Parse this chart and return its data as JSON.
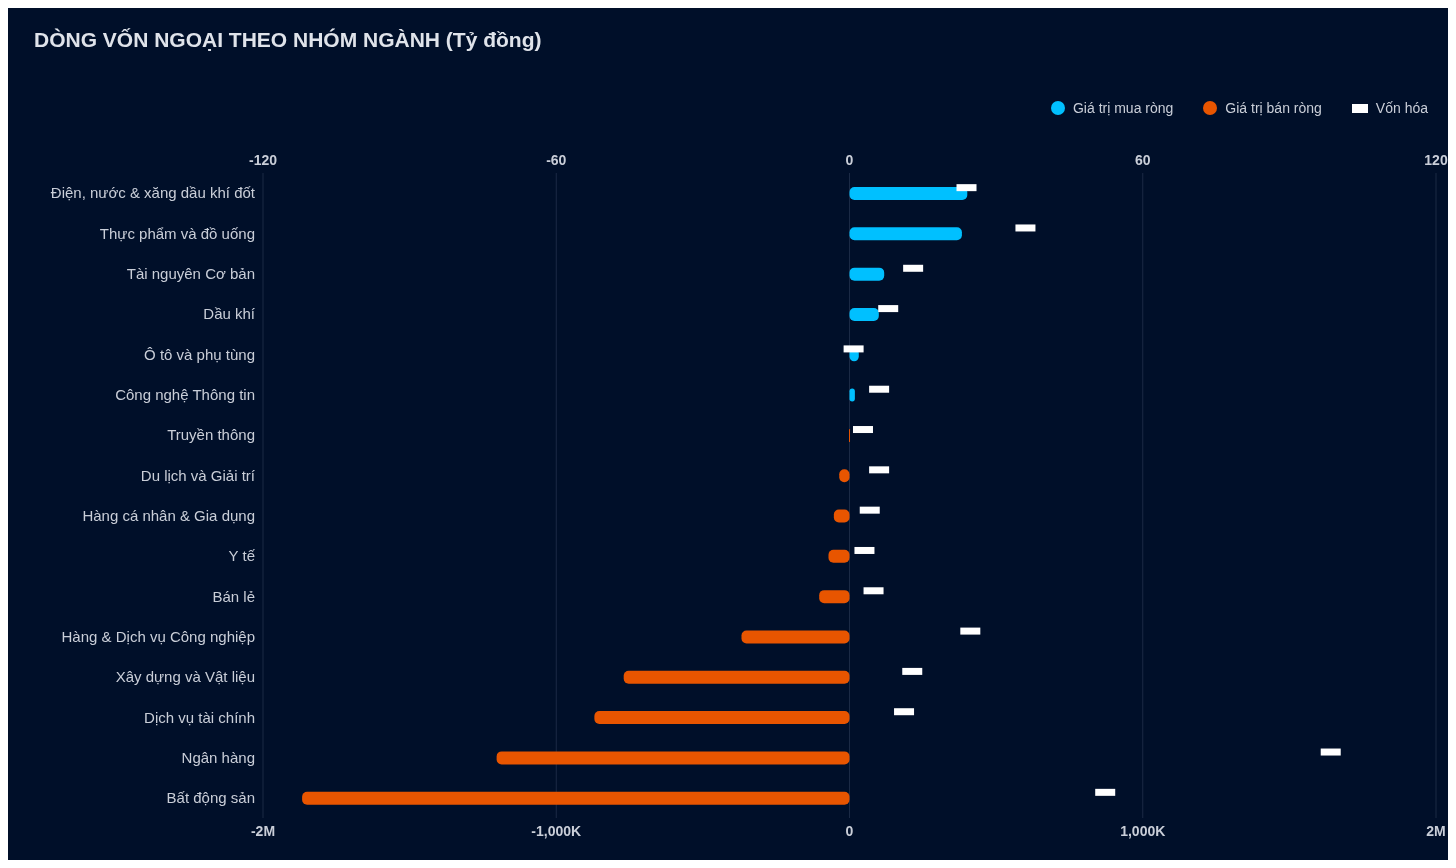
{
  "chart_data": {
    "type": "bar",
    "orientation": "horizontal",
    "title": "DÒNG VỐN NGOẠI THEO NHÓM NGÀNH (Tỷ đồng)",
    "categories": [
      "Điện, nước & xăng dầu khí đốt",
      "Thực phẩm và đồ uống",
      "Tài nguyên Cơ bản",
      "Dầu khí",
      "Ô tô và phụ tùng",
      "Công nghệ Thông tin",
      "Truyền thông",
      "Du lịch và Giải trí",
      "Hàng cá nhân & Gia dụng",
      "Y tế",
      "Bán lẻ",
      "Hàng & Dịch vụ Công nghiệp",
      "Xây dựng và Vật liệu",
      "Dịch vụ tài chính",
      "Ngân hàng",
      "Bất động sản"
    ],
    "series": [
      {
        "name": "Giá trị mua ròng",
        "color": "#00c0ff",
        "values": [
          24.1,
          23.0,
          7.1,
          6.0,
          1.9,
          1.1,
          null,
          null,
          null,
          null,
          null,
          null,
          null,
          null,
          null,
          null
        ]
      },
      {
        "name": "Giá trị bán ròng",
        "color": "#e85500",
        "values": [
          null,
          null,
          null,
          null,
          null,
          null,
          -0.1,
          -2.1,
          -3.2,
          -4.3,
          -6.2,
          -22.1,
          -46.2,
          -52.2,
          -72.2,
          -112.0
        ]
      },
      {
        "name": "Vốn hóa",
        "type": "scatter",
        "axis": "x2",
        "marker": "square",
        "color": "#ffffff",
        "values": [
          399000,
          600000,
          217000,
          132000,
          14000,
          101000,
          46000,
          101000,
          69000,
          51000,
          82000,
          412000,
          214000,
          186000,
          1641000,
          872000
        ]
      }
    ],
    "xlim": [
      -120,
      120
    ],
    "xticks": [
      -120,
      -60,
      0,
      60,
      120
    ],
    "x2lim": [
      -2000000,
      2000000
    ],
    "x2ticks": [
      {
        "value": -2000000,
        "label": "-2M"
      },
      {
        "value": -1000000,
        "label": "-1,000K"
      },
      {
        "value": 0,
        "label": "0"
      },
      {
        "value": 1000000,
        "label": "1,000K"
      },
      {
        "value": 2000000,
        "label": "2M"
      }
    ],
    "grid": "x",
    "legend": "top right"
  }
}
